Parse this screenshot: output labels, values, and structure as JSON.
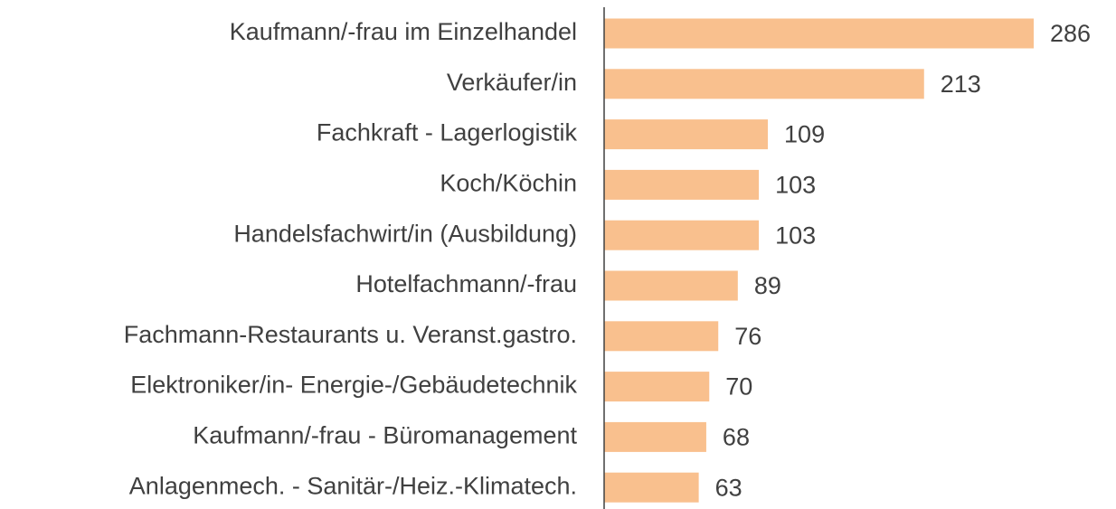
{
  "chart_data": {
    "type": "bar",
    "orientation": "horizontal",
    "categories": [
      "Kaufmann/-frau im Einzelhandel",
      "Verkäufer/in",
      "Fachkraft - Lagerlogistik",
      "Koch/Köchin",
      "Handelsfachwirt/in (Ausbildung)",
      "Hotelfachmann/-frau",
      "Fachmann-Restaurants u. Veranst.gastro.",
      "Elektroniker/in- Energie-/Gebäudetechnik",
      "Kaufmann/-frau - Büromanagement",
      "Anlagenmech. - Sanitär-/Heiz.-Klimatech."
    ],
    "values": [
      286,
      213,
      109,
      103,
      103,
      89,
      76,
      70,
      68,
      63
    ],
    "color": "#f9c08e"
  }
}
